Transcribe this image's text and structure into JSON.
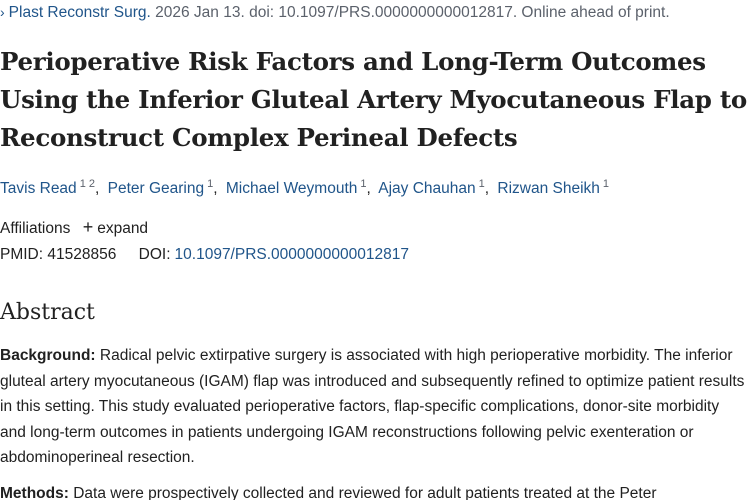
{
  "citation": {
    "journal": "Plast Reconstr Surg.",
    "details": "2026 Jan 13. doi: 10.1097/PRS.0000000000012817. Online ahead of print.",
    "chevron": "›"
  },
  "article": {
    "title": "Perioperative Risk Factors and Long-Term Outcomes Using the Inferior Gluteal Artery Myocutaneous Flap to Reconstruct Complex Perineal Defects"
  },
  "authors": [
    {
      "name": "Tavis Read",
      "aff": "1 2"
    },
    {
      "name": "Peter Gearing",
      "aff": "1"
    },
    {
      "name": "Michael Weymouth",
      "aff": "1"
    },
    {
      "name": "Ajay Chauhan",
      "aff": "1"
    },
    {
      "name": "Rizwan Sheikh",
      "aff": "1"
    }
  ],
  "affiliations": {
    "label": "Affiliations",
    "expand_label": "expand",
    "expand_icon": "+"
  },
  "identifiers": {
    "pmid_label": "PMID:",
    "pmid": "41528856",
    "doi_label": "DOI:",
    "doi": "10.1097/PRS.0000000000012817"
  },
  "abstract": {
    "heading": "Abstract",
    "background_label": "Background:",
    "background_text": "Radical pelvic extirpative surgery is associated with high perioperative morbidity. The inferior gluteal artery myocutaneous (IGAM) flap was introduced and subsequently refined to optimize patient results in this setting. This study evaluated perioperative factors, flap-specific complications, donor-site morbidity and long-term outcomes in patients undergoing IGAM reconstructions following pelvic exenteration or abdominoperineal resection.",
    "methods_label": "Methods:",
    "methods_text": "Data were prospectively collected and reviewed for adult patients treated at the Peter"
  },
  "colors": {
    "link": "#20558a",
    "muted": "#5b616b",
    "text": "#212121"
  }
}
